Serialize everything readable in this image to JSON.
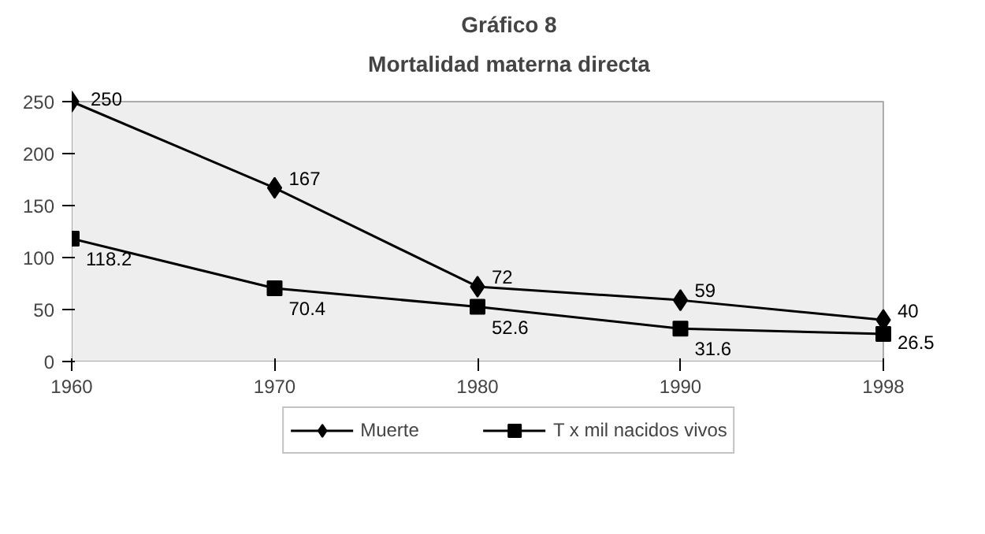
{
  "chart_data": {
    "type": "line",
    "title": "Gráfico 8",
    "subtitle": "Mortalidad materna directa",
    "categories": [
      "1960",
      "1970",
      "1980",
      "1990",
      "1998"
    ],
    "series": [
      {
        "name": "Muerte",
        "color": "#000000",
        "marker": "diamond",
        "values": [
          250,
          167,
          72,
          59,
          40
        ]
      },
      {
        "name": "T x mil nacidos vivos",
        "color": "#000000",
        "marker": "square",
        "values": [
          118.2,
          70.4,
          52.6,
          31.6,
          26.5
        ]
      }
    ],
    "ylim": [
      0,
      250
    ],
    "yticks": [
      0,
      50,
      100,
      150,
      200,
      250
    ],
    "data_labels": true,
    "legend": "bottom",
    "grid": false,
    "line_style": "solid"
  }
}
